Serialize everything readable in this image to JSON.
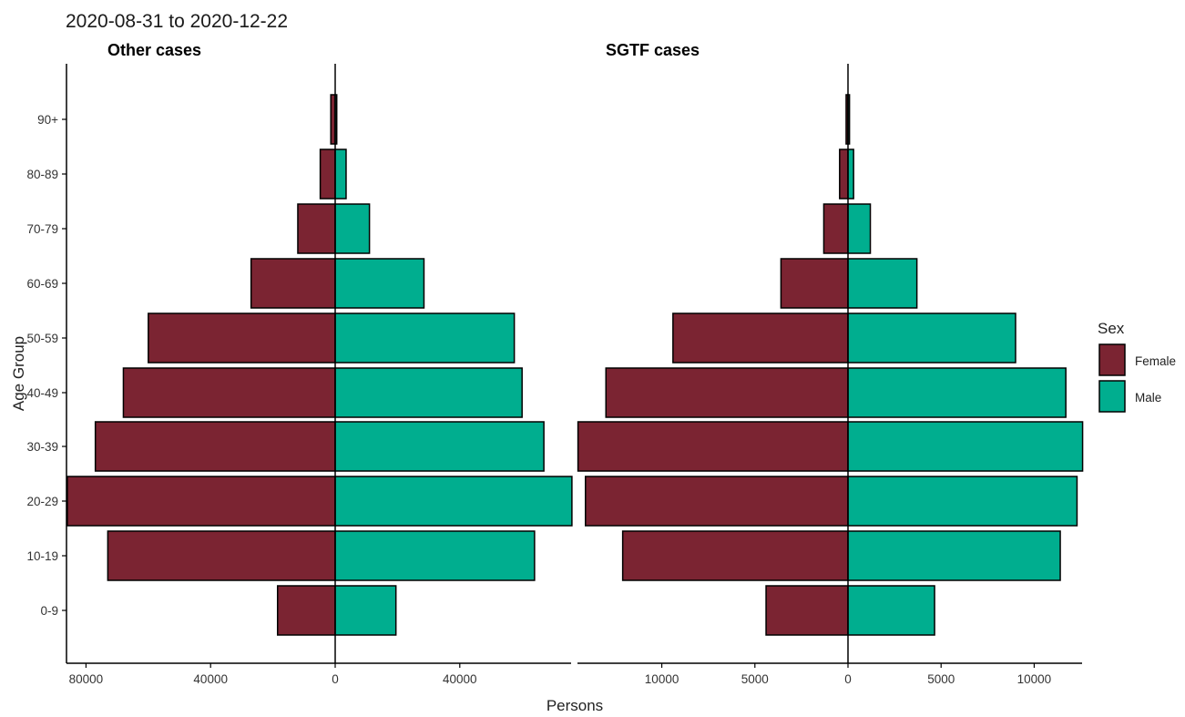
{
  "title": "2020-08-31  to  2020-12-22",
  "legend": {
    "title": "Sex",
    "items": [
      {
        "label": "Female",
        "color": "#7b2432"
      },
      {
        "label": "Male",
        "color": "#00ae8f"
      }
    ]
  },
  "chart_data": [
    {
      "type": "bar",
      "orientation": "horizontal-pyramid",
      "title": "Other cases",
      "xlabel": "Persons",
      "ylabel": "Age Group",
      "categories": [
        "0-9",
        "10-19",
        "20-29",
        "30-39",
        "40-49",
        "50-59",
        "60-69",
        "70-79",
        "80-89",
        "90+"
      ],
      "series": [
        {
          "name": "Female",
          "values": [
            -18500,
            -73000,
            -86000,
            -77000,
            -68000,
            -60000,
            -27000,
            -12000,
            -4800,
            -1400
          ]
        },
        {
          "name": "Male",
          "values": [
            19500,
            64000,
            76000,
            67000,
            60000,
            57500,
            28500,
            11000,
            3500,
            500
          ]
        }
      ],
      "xlim": [
        -86000,
        76000
      ],
      "xticks": [
        -80000,
        -40000,
        0,
        40000
      ],
      "xtick_labels": [
        "80000",
        "40000",
        "0",
        "40000"
      ],
      "grid": false
    },
    {
      "type": "bar",
      "orientation": "horizontal-pyramid",
      "title": "SGTF cases",
      "xlabel": "Persons",
      "ylabel": "Age Group",
      "categories": [
        "0-9",
        "10-19",
        "20-29",
        "30-39",
        "40-49",
        "50-59",
        "60-69",
        "70-79",
        "80-89",
        "90+"
      ],
      "series": [
        {
          "name": "Female",
          "values": [
            -4400,
            -12100,
            -14100,
            -14500,
            -13000,
            -9400,
            -3600,
            -1300,
            -450,
            -100
          ]
        },
        {
          "name": "Male",
          "values": [
            4650,
            11400,
            12300,
            12600,
            11700,
            9000,
            3700,
            1200,
            300,
            80
          ]
        }
      ],
      "xlim": [
        -14500,
        12600
      ],
      "xticks": [
        -10000,
        -5000,
        0,
        5000,
        10000
      ],
      "xtick_labels": [
        "10000",
        "5000",
        "0",
        "5000",
        "10000"
      ],
      "grid": false
    }
  ]
}
